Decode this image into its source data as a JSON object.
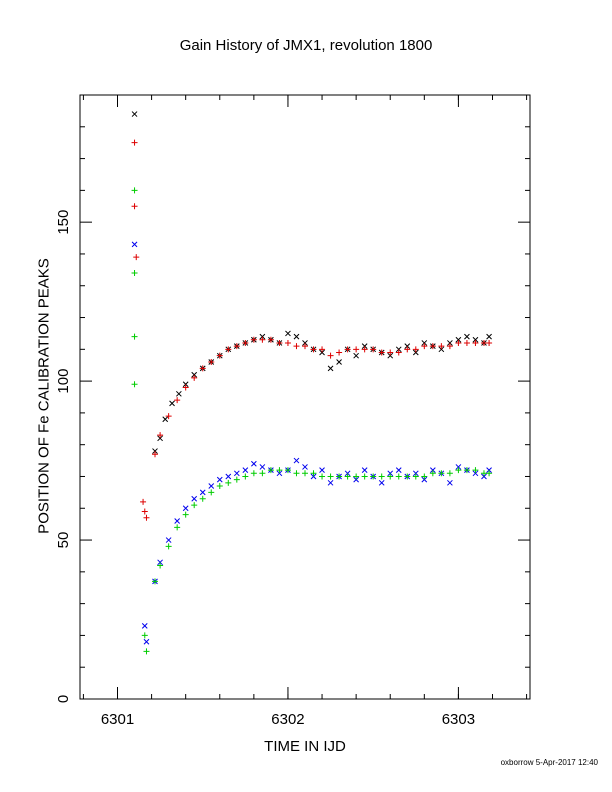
{
  "chart_data": {
    "type": "scatter",
    "title": "Gain History of JMX1, revolution 1800",
    "xlabel": "TIME IN IJD",
    "ylabel": "POSITION OF Fe CALIBRATION PEAKS",
    "xlim": [
      6300.78,
      6303.42
    ],
    "ylim": [
      0,
      190
    ],
    "x_ticks": [
      6301,
      6302,
      6303
    ],
    "x_tick_labels": [
      "6301",
      "6302",
      "6303"
    ],
    "y_ticks": [
      0,
      50,
      100,
      150
    ],
    "y_tick_labels": [
      "0",
      "50",
      "100",
      "150"
    ],
    "grid": false,
    "series": [
      {
        "marker": "x",
        "color": "#000000",
        "x": [
          6301.1,
          6301.22,
          6301.25,
          6301.28,
          6301.32,
          6301.36,
          6301.4,
          6301.45,
          6301.5,
          6301.55,
          6301.6,
          6301.65,
          6301.7,
          6301.75,
          6301.8,
          6301.85,
          6301.9,
          6301.95,
          6302.0,
          6302.05,
          6302.1,
          6302.15,
          6302.2,
          6302.25,
          6302.3,
          6302.35,
          6302.4,
          6302.45,
          6302.5,
          6302.55,
          6302.6,
          6302.65,
          6302.7,
          6302.75,
          6302.8,
          6302.85,
          6302.9,
          6302.95,
          6303.0,
          6303.05,
          6303.1,
          6303.15,
          6303.18
        ],
        "y": [
          184,
          78,
          82,
          88,
          93,
          96,
          99,
          102,
          104,
          106,
          108,
          110,
          111,
          112,
          113,
          114,
          113,
          112,
          115,
          114,
          112,
          110,
          109,
          104,
          106,
          110,
          108,
          111,
          110,
          109,
          108,
          110,
          111,
          109,
          112,
          111,
          110,
          112,
          113,
          114,
          113,
          112,
          114
        ]
      },
      {
        "marker": "+",
        "color": "#dd0000",
        "x": [
          6301.1,
          6301.1,
          6301.11,
          6301.15,
          6301.16,
          6301.17,
          6301.22,
          6301.25,
          6301.3,
          6301.35,
          6301.4,
          6301.45,
          6301.5,
          6301.55,
          6301.6,
          6301.65,
          6301.7,
          6301.75,
          6301.8,
          6301.85,
          6301.9,
          6301.95,
          6302.0,
          6302.05,
          6302.1,
          6302.15,
          6302.2,
          6302.25,
          6302.3,
          6302.35,
          6302.4,
          6302.45,
          6302.5,
          6302.55,
          6302.6,
          6302.65,
          6302.7,
          6302.75,
          6302.8,
          6302.85,
          6302.9,
          6302.95,
          6303.0,
          6303.05,
          6303.1,
          6303.15,
          6303.18
        ],
        "y": [
          175,
          155,
          139,
          62,
          59,
          57,
          77,
          83,
          89,
          94,
          98,
          101,
          104,
          106,
          108,
          110,
          111,
          112,
          113,
          113,
          113,
          112,
          112,
          111,
          111,
          110,
          110,
          108,
          109,
          110,
          110,
          110,
          110,
          109,
          109,
          109,
          110,
          110,
          111,
          111,
          111,
          111,
          112,
          112,
          112,
          112,
          112
        ]
      },
      {
        "marker": "x",
        "color": "#0000ee",
        "x": [
          6301.1,
          6301.16,
          6301.17,
          6301.22,
          6301.25,
          6301.3,
          6301.35,
          6301.4,
          6301.45,
          6301.5,
          6301.55,
          6301.6,
          6301.65,
          6301.7,
          6301.75,
          6301.8,
          6301.85,
          6301.9,
          6301.95,
          6302.0,
          6302.05,
          6302.1,
          6302.15,
          6302.2,
          6302.25,
          6302.3,
          6302.35,
          6302.4,
          6302.45,
          6302.5,
          6302.55,
          6302.6,
          6302.65,
          6302.7,
          6302.75,
          6302.8,
          6302.85,
          6302.9,
          6302.95,
          6303.0,
          6303.05,
          6303.1,
          6303.15,
          6303.18
        ],
        "y": [
          143,
          23,
          18,
          37,
          43,
          50,
          56,
          60,
          63,
          65,
          67,
          69,
          70,
          71,
          72,
          74,
          73,
          72,
          71,
          72,
          75,
          73,
          70,
          72,
          68,
          70,
          71,
          69,
          72,
          70,
          68,
          71,
          72,
          70,
          71,
          69,
          72,
          71,
          68,
          73,
          72,
          71,
          70,
          72
        ]
      },
      {
        "marker": "+",
        "color": "#00cc00",
        "x": [
          6301.1,
          6301.1,
          6301.1,
          6301.1,
          6301.16,
          6301.17,
          6301.22,
          6301.25,
          6301.3,
          6301.35,
          6301.4,
          6301.45,
          6301.5,
          6301.55,
          6301.6,
          6301.65,
          6301.7,
          6301.75,
          6301.8,
          6301.85,
          6301.9,
          6301.95,
          6302.0,
          6302.05,
          6302.1,
          6302.15,
          6302.2,
          6302.25,
          6302.3,
          6302.35,
          6302.4,
          6302.45,
          6302.5,
          6302.55,
          6302.6,
          6302.65,
          6302.7,
          6302.75,
          6302.8,
          6302.85,
          6302.9,
          6302.95,
          6303.0,
          6303.05,
          6303.1,
          6303.15,
          6303.18
        ],
        "y": [
          160,
          134,
          114,
          99,
          20,
          15,
          37,
          42,
          48,
          54,
          58,
          61,
          63,
          65,
          67,
          68,
          69,
          70,
          71,
          71,
          72,
          72,
          72,
          71,
          71,
          71,
          70,
          70,
          70,
          70,
          70,
          70,
          70,
          70,
          70,
          70,
          70,
          70,
          70,
          71,
          71,
          71,
          72,
          72,
          72,
          71,
          71
        ]
      }
    ]
  },
  "footer": "oxborrow  5-Apr-2017 12:40"
}
